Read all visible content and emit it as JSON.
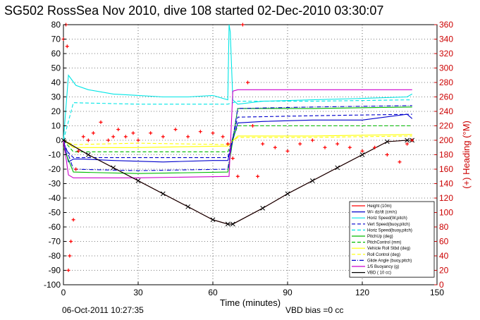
{
  "chart_data": {
    "type": "line",
    "title": "SG502 RossSea Nov 2010, dive 108 started 02-Dec-2010 03:30:07",
    "xlabel": "Time (minutes)",
    "ylabel_right": "(+) Heading (°M)",
    "xlim": [
      0,
      150
    ],
    "ylim": [
      -100,
      80
    ],
    "y2lim": [
      0,
      360
    ],
    "xticks": [
      "0",
      "30",
      "60",
      "90",
      "120",
      "150"
    ],
    "yticks": [
      "-100",
      "-90",
      "-80",
      "-70",
      "-60",
      "-50",
      "-40",
      "-30",
      "-20",
      "-10",
      "0",
      "10",
      "20",
      "30",
      "40",
      "50",
      "60",
      "70",
      "80"
    ],
    "y2ticks": [
      "0",
      "20",
      "40",
      "60",
      "80",
      "100",
      "120",
      "140",
      "160",
      "180",
      "200",
      "220",
      "240",
      "260",
      "280",
      "300",
      "320",
      "340",
      "360"
    ],
    "grid": true,
    "legend_position": "bottom-right",
    "footer_left": "06-Oct-2011 10:27:35",
    "footer_right": "VBD bias =0 cc",
    "colors": {
      "height": "#ff0000",
      "w": "#0000cc",
      "horz_speed": "#00e5e5",
      "vert_speed_buoy": "#0000cc",
      "horz_speed_buoy": "#00e5e5",
      "pitchup": "#00bb00",
      "pitch_control": "#00bb00",
      "vehicle_roll": "#ffff00",
      "roll_control": "#ffff00",
      "glide_angle": "#0000cc",
      "buoyancy": "#cc00cc",
      "vbd": "#000000",
      "heading": "#ff0000"
    },
    "series": [
      {
        "key": "height",
        "name": "Height (10m)",
        "style": "solid",
        "color": "#ff0000",
        "x": [
          0,
          10,
          20,
          30,
          40,
          50,
          60,
          66,
          68,
          80,
          90,
          100,
          110,
          120,
          130,
          138,
          140
        ],
        "y": [
          0,
          -10,
          -19,
          -28,
          -37,
          -46,
          -55,
          -58,
          -58,
          -47,
          -37,
          -28,
          -19,
          -10,
          -1,
          0,
          0
        ]
      },
      {
        "key": "w",
        "name": "W= dz/dt (cm/s)",
        "style": "solid",
        "color": "#0000cc",
        "x": [
          0,
          2,
          4,
          8,
          20,
          40,
          60,
          66,
          68,
          70,
          80,
          100,
          120,
          138,
          140
        ],
        "y": [
          0,
          -15,
          -13,
          -13,
          -14,
          -15,
          -14,
          -14,
          0,
          12,
          13,
          14,
          14,
          18,
          15
        ]
      },
      {
        "key": "horz_speed",
        "name": "Horiz Speed(W,pitch)",
        "style": "solid",
        "color": "#00e5e5",
        "x": [
          0,
          2,
          5,
          10,
          20,
          30,
          40,
          50,
          60,
          66,
          66.5,
          67,
          68,
          70,
          80,
          100,
          120,
          138,
          140
        ],
        "y": [
          0,
          45,
          38,
          35,
          32,
          31,
          30,
          30,
          31,
          28,
          80,
          75,
          28,
          25,
          27,
          28,
          29,
          30,
          32
        ]
      },
      {
        "key": "vert_speed_buoy",
        "name": "Vert Speed(buoy,pitch)",
        "style": "dashed",
        "color": "#0000cc",
        "x": [
          0,
          4,
          30,
          66,
          70,
          100,
          140
        ],
        "y": [
          -5,
          -12,
          -12,
          -12,
          16,
          17,
          18
        ]
      },
      {
        "key": "horz_speed_buoy",
        "name": "Horiz Speed(buoy,pitch)",
        "style": "dashed",
        "color": "#00e5e5",
        "x": [
          0,
          4,
          30,
          66,
          70,
          100,
          140
        ],
        "y": [
          0,
          26,
          25,
          25,
          27,
          27,
          28
        ]
      },
      {
        "key": "pitchup",
        "name": "PitchUp (deg)",
        "style": "solid",
        "color": "#00bb00",
        "x": [
          0,
          4,
          30,
          66,
          70,
          100,
          140
        ],
        "y": [
          -5,
          -22,
          -23,
          -22,
          22,
          22,
          23
        ]
      },
      {
        "key": "pitch_control",
        "name": "PitchControl (mm)",
        "style": "dashed",
        "color": "#00bb00",
        "x": [
          0,
          4,
          30,
          66,
          70,
          100,
          140
        ],
        "y": [
          0,
          -8,
          -8,
          -8,
          10,
          10,
          10
        ]
      },
      {
        "key": "vehicle_roll",
        "name": "Vehicle Roll Stbd (deg)",
        "style": "solid",
        "color": "#ffff00",
        "x": [
          0,
          4,
          30,
          66,
          70,
          100,
          140
        ],
        "y": [
          0,
          -5,
          -5,
          -4,
          3,
          3,
          4
        ]
      },
      {
        "key": "roll_control",
        "name": "Roll Control (deg)",
        "style": "dashed",
        "color": "#ffff00",
        "x": [
          0,
          4,
          30,
          66,
          70,
          100,
          140
        ],
        "y": [
          0,
          -3,
          -2,
          -3,
          2,
          2,
          3
        ]
      },
      {
        "key": "glide_angle",
        "name": "Glide Angle (buoy,pitch)",
        "style": "dashdot",
        "color": "#0000cc",
        "x": [
          0,
          4,
          30,
          66,
          70,
          100,
          140
        ],
        "y": [
          0,
          -20,
          -21,
          -20,
          22,
          23,
          24
        ]
      },
      {
        "key": "buoyancy",
        "name": "1/5 Buoyancy (g)",
        "style": "solid",
        "color": "#cc00cc",
        "x": [
          0,
          2,
          4,
          30,
          66,
          66.5,
          68,
          70,
          100,
          140
        ],
        "y": [
          0,
          -24,
          -26,
          -26,
          -25,
          -25,
          34,
          35,
          35,
          35
        ]
      },
      {
        "key": "vbd",
        "name": "VBD ( 10 cc)",
        "style": "solid",
        "color": "#000000",
        "x": [
          0,
          10,
          20,
          30,
          40,
          50,
          60,
          66,
          68,
          80,
          90,
          100,
          110,
          120,
          130,
          138,
          140
        ],
        "y": [
          0,
          -10,
          -19,
          -28,
          -37,
          -46,
          -55,
          -58,
          -58,
          -47,
          -37,
          -28,
          -19,
          -10,
          -1,
          0,
          0
        ]
      }
    ],
    "heading_points": {
      "x": [
        0,
        1,
        1.5,
        2,
        2.5,
        3,
        4,
        5,
        6,
        8,
        10,
        12,
        15,
        18,
        20,
        22,
        25,
        28,
        30,
        35,
        40,
        45,
        50,
        55,
        60,
        64,
        66,
        68,
        70,
        72,
        74,
        76,
        78,
        80,
        85,
        90,
        95,
        100,
        105,
        110,
        115,
        120,
        125,
        130,
        135,
        138,
        140
      ],
      "y": [
        340,
        360,
        330,
        20,
        40,
        60,
        90,
        160,
        185,
        205,
        200,
        210,
        225,
        200,
        205,
        215,
        205,
        210,
        200,
        210,
        205,
        215,
        205,
        212,
        210,
        205,
        195,
        175,
        150,
        360,
        280,
        220,
        150,
        195,
        190,
        185,
        195,
        200,
        190,
        195,
        190,
        185,
        190,
        180,
        170,
        195,
        200
      ]
    }
  }
}
